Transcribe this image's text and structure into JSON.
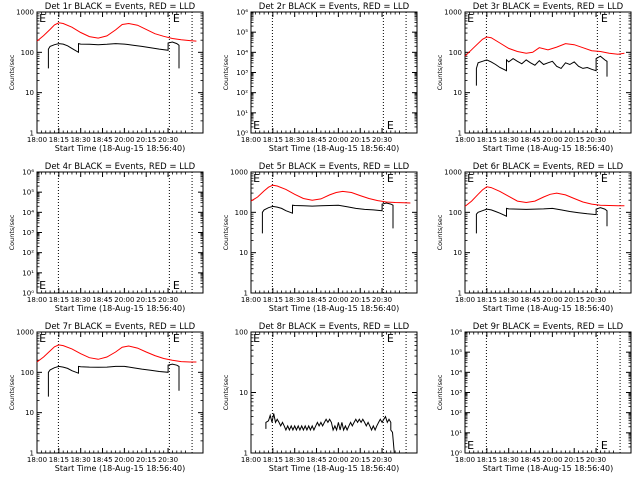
{
  "chart_data": [
    {
      "type": "line",
      "title": "Det 1r BLACK = Events, RED = LLD",
      "xlabel": "Start Time (18-Aug-15 18:56:40)",
      "ylabel": "Counts/sec",
      "yscale": "log",
      "ylim": [
        1,
        1000
      ],
      "ytick_labels": [
        "1",
        "10",
        "100",
        "1000"
      ],
      "xlim_minutes": [
        0,
        38
      ],
      "xtick_labels": [
        "18:00",
        "18:15",
        "18:30",
        "18:45",
        "20:00",
        "20:15",
        "20:30"
      ],
      "dotted_lines_at_minutes": [
        4.9,
        30.3,
        35.5
      ],
      "e_markers": [
        {
          "minute": 0.5,
          "value": 1000
        },
        {
          "minute": 31.1,
          "value": 1000
        }
      ],
      "series": [
        {
          "color": "#ff0000",
          "x": [
            0,
            1.5,
            3,
            4,
            5,
            6,
            8,
            10,
            12,
            14,
            16,
            18,
            19.5,
            21,
            23,
            25,
            27,
            29,
            31,
            33,
            35,
            36.5
          ],
          "y": [
            190,
            260,
            370,
            480,
            540,
            520,
            420,
            310,
            245,
            225,
            255,
            360,
            490,
            520,
            470,
            370,
            290,
            250,
            220,
            205,
            195,
            190
          ]
        },
        {
          "color": "#000000",
          "x": [
            2.6,
            2.6,
            3,
            4,
            5,
            6,
            7,
            8,
            9.5,
            9.5,
            10,
            12,
            14,
            16,
            18,
            20,
            22,
            24,
            26,
            28,
            30,
            30,
            31,
            32,
            32.5,
            32.5
          ],
          "y": [
            40,
            120,
            140,
            155,
            165,
            160,
            145,
            125,
            100,
            165,
            160,
            158,
            155,
            158,
            165,
            160,
            150,
            140,
            130,
            120,
            112,
            170,
            180,
            165,
            150,
            40
          ]
        }
      ]
    },
    {
      "type": "line",
      "title": "Det 2r BLACK = Events, RED = LLD",
      "xlabel": "Start Time (18-Aug-15 18:56:40)",
      "ylabel": "Counts/sec",
      "yscale": "log",
      "ylim": [
        1,
        1000000
      ],
      "ytick_labels": [
        "10⁰",
        "10¹",
        "10²",
        "10³",
        "10⁴",
        "10⁵",
        "10⁶"
      ],
      "xlim_minutes": [
        0,
        38
      ],
      "xtick_labels": [
        "18:00",
        "18:15",
        "18:30",
        "18:45",
        "20:00",
        "20:15",
        "20:30"
      ],
      "dotted_lines_at_minutes": [
        4.9,
        30.3,
        35.5
      ],
      "e_markers": [
        {
          "minute": 0.5,
          "value": 1.6
        },
        {
          "minute": 31.1,
          "value": 1.6
        }
      ],
      "series": []
    },
    {
      "type": "line",
      "title": "Det 3r BLACK = Events, RED = LLD",
      "xlabel": "Start Time (18-Aug-15 18:56:40)",
      "ylabel": "Counts/sec",
      "yscale": "log",
      "ylim": [
        1,
        1000
      ],
      "ytick_labels": [
        "1",
        "10",
        "100",
        "1000"
      ],
      "xlim_minutes": [
        0,
        38
      ],
      "xtick_labels": [
        "18:00",
        "18:15",
        "18:30",
        "18:45",
        "20:00",
        "20:15",
        "20:30"
      ],
      "dotted_lines_at_minutes": [
        4.9,
        30.3,
        35.5
      ],
      "e_markers": [
        {
          "minute": 0.5,
          "value": 1000
        },
        {
          "minute": 31.1,
          "value": 1000
        }
      ],
      "series": [
        {
          "color": "#ff0000",
          "x": [
            0,
            2,
            4,
            5,
            6,
            8,
            10,
            12,
            14,
            15.5,
            17,
            19,
            21,
            23,
            25,
            27,
            29,
            31,
            33,
            35,
            36.5
          ],
          "y": [
            80,
            130,
            210,
            240,
            230,
            170,
            125,
            105,
            95,
            100,
            130,
            115,
            135,
            165,
            155,
            130,
            110,
            105,
            95,
            90,
            95
          ]
        },
        {
          "color": "#000000",
          "x": [
            2.6,
            2.6,
            3,
            4,
            5,
            6,
            7,
            8,
            9.5,
            9.5,
            10,
            11,
            12,
            13,
            14,
            15,
            16,
            17,
            18,
            19,
            20,
            21,
            22,
            23,
            24,
            25,
            26,
            27,
            28,
            29,
            30,
            30,
            31,
            32,
            32.5,
            32.5
          ],
          "y": [
            15,
            40,
            55,
            60,
            65,
            58,
            50,
            42,
            35,
            65,
            58,
            70,
            60,
            52,
            65,
            55,
            48,
            62,
            50,
            55,
            60,
            45,
            40,
            55,
            50,
            58,
            45,
            40,
            42,
            38,
            35,
            70,
            80,
            65,
            60,
            25
          ]
        }
      ]
    },
    {
      "type": "line",
      "title": "Det 4r BLACK = Events, RED = LLD",
      "xlabel": "Start Time (18-Aug-15 18:56:40)",
      "ylabel": "Counts/sec",
      "yscale": "log",
      "ylim": [
        1,
        1000000
      ],
      "ytick_labels": [
        "10⁰",
        "10¹",
        "10²",
        "10³",
        "10⁴",
        "10⁵",
        "10⁶"
      ],
      "xlim_minutes": [
        0,
        38
      ],
      "xtick_labels": [
        "18:00",
        "18:15",
        "18:30",
        "18:45",
        "20:00",
        "20:15",
        "20:30"
      ],
      "dotted_lines_at_minutes": [
        4.9,
        30.3,
        35.5
      ],
      "e_markers": [
        {
          "minute": 0.5,
          "value": 1.6
        },
        {
          "minute": 31.1,
          "value": 1.6
        }
      ],
      "series": []
    },
    {
      "type": "line",
      "title": "Det 5r BLACK = Events, RED = LLD",
      "xlabel": "Start Time (18-Aug-15 18:56:40)",
      "ylabel": "Counts/sec",
      "yscale": "log",
      "ylim": [
        1,
        1000
      ],
      "ytick_labels": [
        "1",
        "10",
        "100",
        "1000"
      ],
      "xlim_minutes": [
        0,
        38
      ],
      "xtick_labels": [
        "18:00",
        "18:15",
        "18:30",
        "18:45",
        "20:00",
        "20:15",
        "20:30"
      ],
      "dotted_lines_at_minutes": [
        4.9,
        30.3,
        35.5
      ],
      "e_markers": [
        {
          "minute": 0.5,
          "value": 1000
        },
        {
          "minute": 31.1,
          "value": 1000
        }
      ],
      "series": [
        {
          "color": "#ff0000",
          "x": [
            0,
            1.5,
            3,
            4,
            5,
            6,
            8,
            10,
            12,
            14,
            16,
            18,
            19.5,
            21,
            23,
            25,
            27,
            29,
            31,
            33,
            35,
            36.5
          ],
          "y": [
            190,
            240,
            340,
            420,
            470,
            450,
            370,
            280,
            220,
            200,
            215,
            270,
            310,
            330,
            310,
            260,
            220,
            195,
            180,
            175,
            172,
            170
          ]
        },
        {
          "color": "#000000",
          "x": [
            2.6,
            2.6,
            3,
            4,
            5,
            6,
            7,
            8,
            9.5,
            9.5,
            10,
            12,
            14,
            16,
            18,
            20,
            22,
            24,
            26,
            28,
            30,
            30,
            31,
            32,
            32.5,
            32.5
          ],
          "y": [
            30,
            100,
            115,
            130,
            140,
            135,
            125,
            110,
            95,
            150,
            148,
            145,
            143,
            145,
            148,
            150,
            138,
            125,
            118,
            115,
            110,
            160,
            170,
            160,
            150,
            40
          ]
        }
      ]
    },
    {
      "type": "line",
      "title": "Det 6r BLACK = Events, RED = LLD",
      "xlabel": "Start Time (18-Aug-15 18:56:40)",
      "ylabel": "Counts/sec",
      "yscale": "log",
      "ylim": [
        1,
        1000
      ],
      "ytick_labels": [
        "1",
        "10",
        "100",
        "1000"
      ],
      "xlim_minutes": [
        0,
        38
      ],
      "xtick_labels": [
        "18:00",
        "18:15",
        "18:30",
        "18:45",
        "20:00",
        "20:15",
        "20:30"
      ],
      "dotted_lines_at_minutes": [
        4.9,
        30.3,
        35.5
      ],
      "e_markers": [
        {
          "minute": 0.5,
          "value": 1000
        },
        {
          "minute": 31.1,
          "value": 1000
        }
      ],
      "series": [
        {
          "color": "#ff0000",
          "x": [
            0,
            1.5,
            3,
            4,
            5,
            6,
            8,
            10,
            12,
            14,
            16,
            18,
            19.5,
            21,
            23,
            25,
            27,
            29,
            31,
            33,
            35,
            36.5
          ],
          "y": [
            140,
            190,
            280,
            360,
            430,
            410,
            330,
            250,
            190,
            175,
            190,
            240,
            280,
            300,
            270,
            220,
            180,
            160,
            150,
            148,
            145,
            145
          ]
        },
        {
          "color": "#000000",
          "x": [
            2.6,
            2.6,
            3,
            4,
            5,
            6,
            7,
            8,
            9.5,
            9.5,
            10,
            12,
            14,
            16,
            18,
            20,
            22,
            24,
            26,
            28,
            30,
            30,
            31,
            32,
            32.5,
            32.5
          ],
          "y": [
            30,
            90,
            100,
            110,
            120,
            115,
            105,
            95,
            80,
            125,
            122,
            120,
            118,
            120,
            122,
            125,
            115,
            105,
            98,
            92,
            88,
            120,
            130,
            120,
            110,
            45
          ]
        }
      ]
    },
    {
      "type": "line",
      "title": "Det 7r BLACK = Events, RED = LLD",
      "xlabel": "Start Time (18-Aug-15 18:56:40)",
      "ylabel": "Counts/sec",
      "yscale": "log",
      "ylim": [
        1,
        1000
      ],
      "ytick_labels": [
        "1",
        "10",
        "100",
        "1000"
      ],
      "xlim_minutes": [
        0,
        38
      ],
      "xtick_labels": [
        "18:00",
        "18:15",
        "18:30",
        "18:45",
        "20:00",
        "20:15",
        "20:30"
      ],
      "dotted_lines_at_minutes": [
        4.9,
        30.3,
        35.5
      ],
      "e_markers": [
        {
          "minute": 0.5,
          "value": 1000
        },
        {
          "minute": 31.1,
          "value": 1000
        }
      ],
      "series": [
        {
          "color": "#ff0000",
          "x": [
            0,
            1.5,
            3,
            4,
            5,
            6,
            8,
            10,
            12,
            14,
            16,
            18,
            19.5,
            21,
            23,
            25,
            27,
            29,
            31,
            33,
            35,
            36.5
          ],
          "y": [
            180,
            240,
            340,
            430,
            480,
            460,
            380,
            290,
            230,
            210,
            240,
            320,
            420,
            450,
            400,
            320,
            260,
            220,
            200,
            185,
            180,
            180
          ]
        },
        {
          "color": "#000000",
          "x": [
            2.6,
            2.6,
            3,
            4,
            5,
            6,
            7,
            8,
            9.5,
            9.5,
            10,
            12,
            14,
            16,
            18,
            20,
            22,
            24,
            26,
            28,
            30,
            30,
            31,
            32,
            32.5,
            32.5
          ],
          "y": [
            25,
            100,
            115,
            130,
            140,
            135,
            125,
            110,
            95,
            140,
            138,
            135,
            133,
            135,
            140,
            140,
            130,
            120,
            112,
            105,
            100,
            150,
            160,
            150,
            140,
            35
          ]
        }
      ]
    },
    {
      "type": "line",
      "title": "Det 8r BLACK = Events, RED = LLD",
      "xlabel": "Start Time (18-Aug-15 18:56:40)",
      "ylabel": "Counts/sec",
      "yscale": "log",
      "ylim": [
        1,
        100
      ],
      "ytick_labels": [
        "1",
        "10",
        "100"
      ],
      "xlim_minutes": [
        0,
        38
      ],
      "xtick_labels": [
        "18:00",
        "18:15",
        "18:30",
        "18:45",
        "20:00",
        "20:15",
        "20:30"
      ],
      "dotted_lines_at_minutes": [
        4.9,
        30.3,
        35.5
      ],
      "e_markers": [
        {
          "minute": 0.5,
          "value": 100
        },
        {
          "minute": 31.1,
          "value": 100
        }
      ],
      "series": [
        {
          "color": "#000000",
          "x": [
            3.4,
            3.4,
            4,
            4.4,
            4.8,
            5.2,
            5.6,
            6,
            6.4,
            6.8,
            7.2,
            7.6,
            8,
            8.4,
            8.8,
            9.2,
            9.6,
            10,
            10.4,
            10.8,
            11.2,
            11.6,
            12,
            12.4,
            12.8,
            13.2,
            13.6,
            14,
            14.4,
            14.8,
            15.2,
            15.6,
            16,
            16.4,
            16.8,
            17.2,
            17.6,
            18,
            18.4,
            18.8,
            19.2,
            19.6,
            20,
            20.4,
            20.8,
            21.2,
            21.6,
            22,
            22.4,
            22.8,
            23.2,
            23.6,
            24,
            24.4,
            24.8,
            25.2,
            25.6,
            26,
            26.4,
            26.8,
            27.2,
            27.6,
            28,
            28.4,
            28.8,
            29.2,
            29.6,
            30,
            30.4,
            30.8,
            31.2,
            31.6,
            32,
            32,
            32.4,
            32.8
          ],
          "y": [
            2.5,
            3.2,
            3.4,
            4.2,
            3.2,
            4.5,
            3.2,
            3.6,
            3.2,
            2.8,
            3.2,
            2.8,
            2.4,
            2.8,
            2.4,
            2.8,
            2.4,
            2.8,
            2.4,
            2.8,
            2.4,
            2.8,
            2.4,
            2.8,
            2.4,
            2.8,
            2.4,
            2.8,
            2.4,
            2.8,
            3.2,
            2.8,
            3.2,
            2.8,
            3.2,
            3.6,
            3.2,
            3.6,
            3.2,
            2.4,
            2.8,
            2.4,
            3.2,
            2.4,
            3.2,
            2.4,
            2.8,
            2.4,
            2.8,
            3.2,
            2.8,
            3.2,
            3.6,
            3.2,
            3.6,
            3.2,
            3.6,
            3.2,
            2.8,
            3.2,
            2.8,
            2.4,
            2.8,
            2.4,
            2.8,
            3.2,
            3.6,
            3.2,
            3.6,
            4,
            3.2,
            3.6,
            3.2,
            2.4,
            2.2,
            1
          ]
        }
      ]
    },
    {
      "type": "line",
      "title": "Det 9r BLACK = Events, RED = LLD",
      "xlabel": "Start Time (18-Aug-15 18:56:40)",
      "ylabel": "Counts/sec",
      "yscale": "log",
      "ylim": [
        1,
        1000000
      ],
      "ytick_labels": [
        "10⁰",
        "10¹",
        "10²",
        "10³",
        "10⁴",
        "10⁵",
        "10⁶"
      ],
      "xlim_minutes": [
        0,
        38
      ],
      "xtick_labels": [
        "18:00",
        "18:15",
        "18:30",
        "18:45",
        "20:00",
        "20:15",
        "20:30"
      ],
      "dotted_lines_at_minutes": [
        4.9,
        30.3,
        35.5
      ],
      "e_markers": [
        {
          "minute": 0.5,
          "value": 1.6
        },
        {
          "minute": 31.1,
          "value": 1.6
        }
      ],
      "series": []
    }
  ]
}
